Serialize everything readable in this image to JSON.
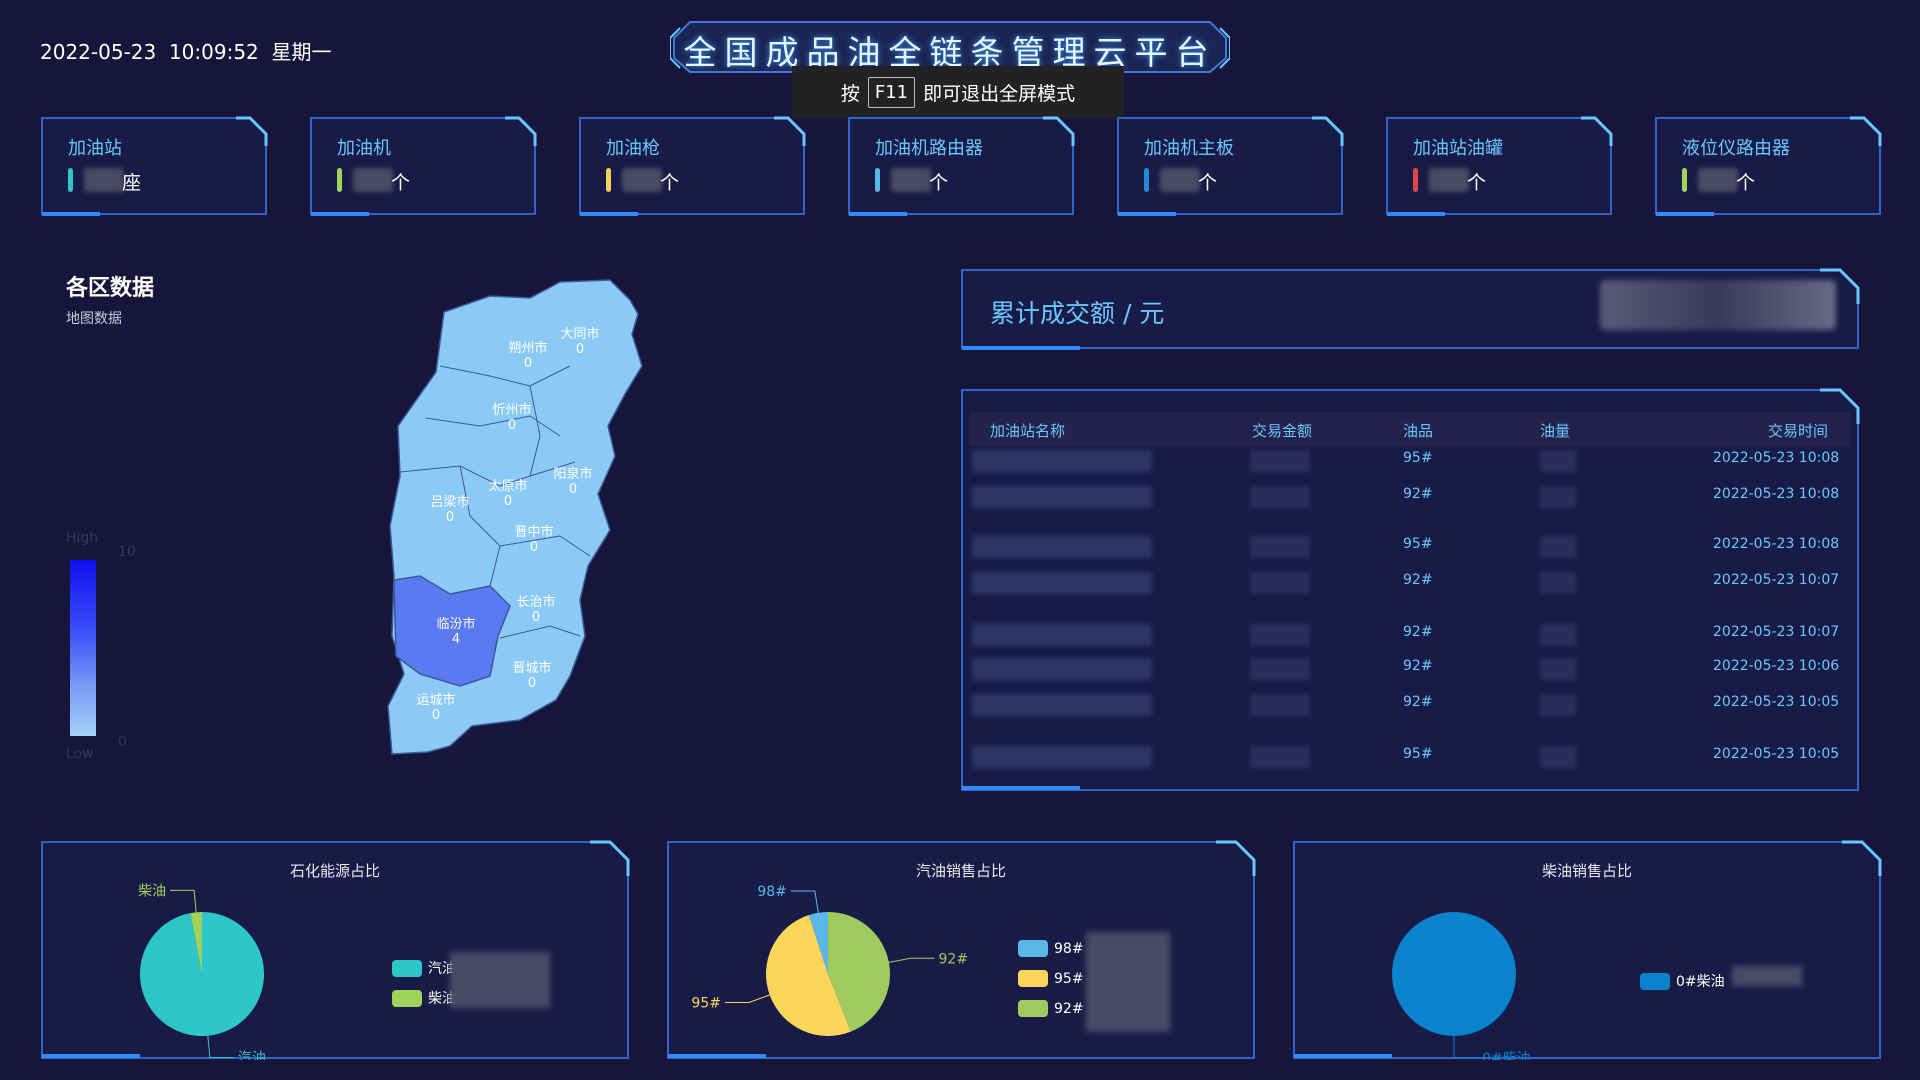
{
  "header": {
    "datetime": "2022-05-23  10:09:52  星期一",
    "title": "全国成品油全链条管理云平台",
    "toast": {
      "prefix": "按",
      "key": "F11",
      "suffix": "即可退出全屏模式"
    }
  },
  "stats": [
    {
      "label": "加油站",
      "unit": "座",
      "color": "#2ec7c9"
    },
    {
      "label": "加油机",
      "unit": "个",
      "color": "#9fd35a"
    },
    {
      "label": "加油枪",
      "unit": "个",
      "color": "#f6d05a"
    },
    {
      "label": "加油机路由器",
      "unit": "个",
      "color": "#5ab8e8"
    },
    {
      "label": "加油机主板",
      "unit": "个",
      "color": "#1e8bd8"
    },
    {
      "label": "加油站油罐",
      "unit": "个",
      "color": "#e04848"
    },
    {
      "label": "液位仪路由器",
      "unit": "个",
      "color": "#9fd35a"
    }
  ],
  "region": {
    "title": "各区数据",
    "subtitle": "地图数据",
    "visualmap": {
      "high": "High",
      "low": "Low",
      "max": "10",
      "min": "0"
    },
    "cities": [
      {
        "name": "大同市",
        "value": "0"
      },
      {
        "name": "朔州市",
        "value": "0"
      },
      {
        "name": "忻州市",
        "value": "0"
      },
      {
        "name": "阳泉市",
        "value": "0"
      },
      {
        "name": "太原市",
        "value": "0"
      },
      {
        "name": "吕梁市",
        "value": "0"
      },
      {
        "name": "晋中市",
        "value": "0"
      },
      {
        "name": "长治市",
        "value": "0"
      },
      {
        "name": "临汾市",
        "value": "4"
      },
      {
        "name": "晋城市",
        "value": "0"
      },
      {
        "name": "运城市",
        "value": "0"
      }
    ]
  },
  "total": {
    "label": "累计成交额 / 元"
  },
  "transactions": {
    "headers": [
      "加油站名称",
      "交易金额",
      "油品",
      "油量",
      "交易时间"
    ],
    "rows": [
      {
        "oil": "95#",
        "time": "2022-05-23 10:08"
      },
      {
        "oil": "92#",
        "time": "2022-05-23 10:08"
      },
      {
        "oil": "95#",
        "time": "2022-05-23 10:08"
      },
      {
        "oil": "92#",
        "time": "2022-05-23 10:07"
      },
      {
        "oil": "92#",
        "time": "2022-05-23 10:07"
      },
      {
        "oil": "92#",
        "time": "2022-05-23 10:06"
      },
      {
        "oil": "92#",
        "time": "2022-05-23 10:05"
      },
      {
        "oil": "95#",
        "time": "2022-05-23 10:05"
      }
    ]
  },
  "pies": [
    {
      "title": "石化能源占比",
      "slices": [
        {
          "name": "汽油",
          "fraction": 0.97,
          "color": "#2ec7c9"
        },
        {
          "name": "柴油",
          "fraction": 0.03,
          "color": "#9fd35a"
        }
      ],
      "legend": [
        "汽油",
        "柴油"
      ]
    },
    {
      "title": "汽油销售占比",
      "slices": [
        {
          "name": "92#",
          "fraction": 0.44,
          "color": "#9fcb5e"
        },
        {
          "name": "95#",
          "fraction": 0.51,
          "color": "#fbd65a"
        },
        {
          "name": "98#",
          "fraction": 0.05,
          "color": "#5ab8e8"
        }
      ],
      "legend": [
        "98#",
        "95#",
        "92#"
      ]
    },
    {
      "title": "柴油销售占比",
      "slices": [
        {
          "name": "0#柴油",
          "fraction": 1.0,
          "color": "#0a82cc"
        }
      ],
      "legend": [
        "0#柴油"
      ]
    }
  ]
}
